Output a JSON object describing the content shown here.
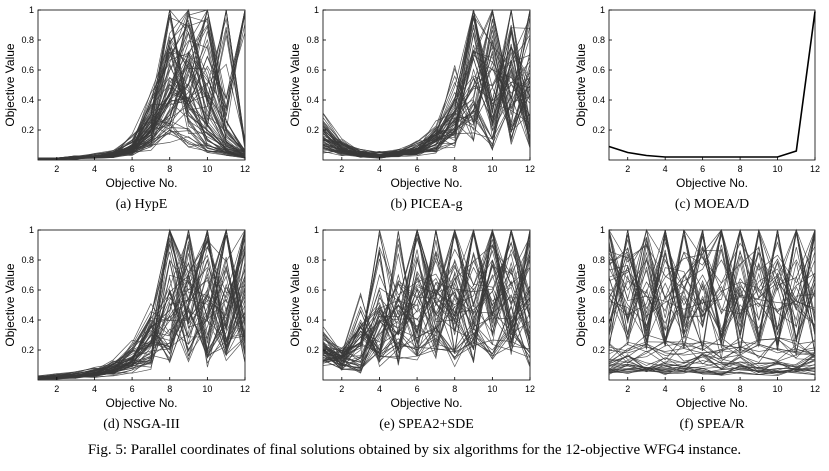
{
  "caption": "Fig. 5: Parallel coordinates of final solutions obtained by six algorithms for the 12-objective WFG4 instance.",
  "chart_data": [
    {
      "type": "line",
      "subtitle": "(a) HypE",
      "xlabel": "Objective No.",
      "ylabel": "Objective Value",
      "xlim": [
        1,
        12
      ],
      "ylim": [
        0,
        1
      ],
      "xticks": [
        "2",
        "4",
        "6",
        "8",
        "10",
        "12"
      ],
      "yticks": [
        "0.2",
        "0.4",
        "0.6",
        "0.8",
        "1"
      ],
      "color": "#3a3a3a",
      "series": [
        {
          "values": [
            0.01,
            0.01,
            0.02,
            0.02,
            0.03,
            0.06,
            0.15,
            0.55,
            0.4,
            0.1,
            0.05,
            0.02
          ]
        },
        {
          "values": [
            0.01,
            0.01,
            0.01,
            0.02,
            0.04,
            0.1,
            0.25,
            0.95,
            0.3,
            0.2,
            0.08,
            0.04
          ]
        },
        {
          "values": [
            0.01,
            0.01,
            0.02,
            0.03,
            0.05,
            0.12,
            0.35,
            0.6,
            0.85,
            0.3,
            0.1,
            0.02
          ]
        },
        {
          "values": [
            0.01,
            0.01,
            0.01,
            0.02,
            0.03,
            0.08,
            0.2,
            0.45,
            0.7,
            0.95,
            0.2,
            0.05
          ]
        },
        {
          "values": [
            0.01,
            0.01,
            0.02,
            0.02,
            0.04,
            0.09,
            0.18,
            0.3,
            0.6,
            0.4,
            0.99,
            0.1
          ]
        },
        {
          "values": [
            0.01,
            0.01,
            0.01,
            0.02,
            0.03,
            0.07,
            0.22,
            0.4,
            0.5,
            0.8,
            0.3,
            0.98
          ]
        },
        {
          "values": [
            0.01,
            0.01,
            0.01,
            0.02,
            0.03,
            0.05,
            0.1,
            0.2,
            0.15,
            0.08,
            0.05,
            0.02
          ]
        },
        {
          "values": [
            0.01,
            0.01,
            0.02,
            0.02,
            0.03,
            0.06,
            0.3,
            0.75,
            0.65,
            0.5,
            0.2,
            0.05
          ]
        }
      ]
    },
    {
      "type": "line",
      "subtitle": "(b) PICEA-g",
      "xlabel": "Objective No.",
      "ylabel": "Objective Value",
      "xlim": [
        1,
        12
      ],
      "ylim": [
        0,
        1
      ],
      "xticks": [
        "2",
        "4",
        "6",
        "8",
        "10",
        "12"
      ],
      "yticks": [
        "0.2",
        "0.4",
        "0.6",
        "0.8",
        "1"
      ],
      "color": "#3a3a3a",
      "series": [
        {
          "values": [
            0.22,
            0.1,
            0.05,
            0.04,
            0.05,
            0.08,
            0.15,
            0.35,
            0.95,
            0.4,
            0.9,
            0.2
          ]
        },
        {
          "values": [
            0.18,
            0.08,
            0.04,
            0.03,
            0.04,
            0.06,
            0.12,
            0.25,
            0.5,
            0.98,
            0.3,
            0.95
          ]
        },
        {
          "values": [
            0.12,
            0.06,
            0.03,
            0.03,
            0.04,
            0.07,
            0.1,
            0.3,
            0.7,
            0.6,
            0.55,
            0.4
          ]
        },
        {
          "values": [
            0.08,
            0.05,
            0.03,
            0.02,
            0.03,
            0.05,
            0.08,
            0.2,
            0.3,
            0.1,
            0.65,
            0.7
          ]
        },
        {
          "values": [
            0.2,
            0.09,
            0.05,
            0.04,
            0.05,
            0.09,
            0.18,
            0.45,
            0.2,
            0.8,
            0.15,
            0.5
          ]
        },
        {
          "values": [
            0.15,
            0.07,
            0.04,
            0.03,
            0.03,
            0.05,
            0.14,
            0.15,
            0.85,
            0.25,
            0.75,
            0.1
          ]
        }
      ]
    },
    {
      "type": "line",
      "subtitle": "(c) MOEA/D",
      "xlabel": "Objective No.",
      "ylabel": "Objective Value",
      "xlim": [
        1,
        12
      ],
      "ylim": [
        0,
        1
      ],
      "xticks": [
        "2",
        "4",
        "6",
        "8",
        "10",
        "12"
      ],
      "yticks": [
        "0.2",
        "0.4",
        "0.6",
        "0.8",
        "1"
      ],
      "color": "#000000",
      "series": [
        {
          "values": [
            0.09,
            0.05,
            0.03,
            0.02,
            0.02,
            0.02,
            0.02,
            0.02,
            0.02,
            0.02,
            0.06,
            0.99
          ]
        }
      ]
    },
    {
      "type": "line",
      "subtitle": "(d) NSGA-III",
      "xlabel": "Objective No.",
      "ylabel": "Objective Value",
      "xlim": [
        1,
        12
      ],
      "ylim": [
        0,
        1
      ],
      "xticks": [
        "2",
        "4",
        "6",
        "8",
        "10",
        "12"
      ],
      "yticks": [
        "0.2",
        "0.4",
        "0.6",
        "0.8",
        "1"
      ],
      "color": "#3a3a3a",
      "series": [
        {
          "values": [
            0.02,
            0.02,
            0.03,
            0.05,
            0.08,
            0.15,
            0.35,
            0.98,
            0.4,
            0.6,
            0.2,
            0.5
          ]
        },
        {
          "values": [
            0.01,
            0.02,
            0.03,
            0.04,
            0.07,
            0.12,
            0.25,
            0.45,
            0.97,
            0.3,
            0.8,
            0.2
          ]
        },
        {
          "values": [
            0.02,
            0.03,
            0.04,
            0.06,
            0.1,
            0.2,
            0.4,
            0.3,
            0.5,
            0.98,
            0.25,
            0.7
          ]
        },
        {
          "values": [
            0.01,
            0.02,
            0.02,
            0.04,
            0.06,
            0.1,
            0.18,
            0.6,
            0.2,
            0.45,
            0.99,
            0.3
          ]
        },
        {
          "values": [
            0.02,
            0.02,
            0.03,
            0.05,
            0.09,
            0.14,
            0.3,
            0.2,
            0.7,
            0.15,
            0.4,
            0.98
          ]
        },
        {
          "values": [
            0.01,
            0.01,
            0.02,
            0.03,
            0.05,
            0.08,
            0.12,
            0.8,
            0.6,
            0.75,
            0.55,
            0.85
          ]
        }
      ]
    },
    {
      "type": "line",
      "subtitle": "(e) SPEA2+SDE",
      "xlabel": "Objective No.",
      "ylabel": "Objective Value",
      "xlim": [
        1,
        12
      ],
      "ylim": [
        0,
        1
      ],
      "xticks": [
        "2",
        "4",
        "6",
        "8",
        "10",
        "12"
      ],
      "yticks": [
        "0.2",
        "0.4",
        "0.6",
        "0.8",
        "1"
      ],
      "color": "#3a3a3a",
      "series": [
        {
          "values": [
            0.18,
            0.15,
            0.12,
            0.45,
            0.3,
            0.6,
            0.25,
            0.98,
            0.4,
            0.7,
            0.3,
            0.95
          ]
        },
        {
          "values": [
            0.2,
            0.12,
            0.35,
            0.2,
            0.7,
            0.25,
            0.85,
            0.3,
            0.97,
            0.35,
            0.98,
            0.4
          ]
        },
        {
          "values": [
            0.25,
            0.18,
            0.25,
            0.6,
            0.15,
            0.8,
            0.4,
            0.6,
            0.2,
            0.99,
            0.25,
            0.6
          ]
        },
        {
          "values": [
            0.15,
            0.1,
            0.08,
            0.3,
            0.5,
            0.4,
            0.6,
            0.45,
            0.75,
            0.5,
            0.65,
            0.3
          ]
        },
        {
          "values": [
            0.22,
            0.14,
            0.4,
            0.15,
            0.25,
            0.2,
            0.3,
            0.15,
            0.3,
            0.2,
            0.35,
            0.15
          ]
        },
        {
          "values": [
            0.17,
            0.11,
            0.2,
            0.7,
            0.4,
            0.95,
            0.5,
            0.75,
            0.6,
            0.8,
            0.5,
            0.75
          ]
        }
      ]
    },
    {
      "type": "line",
      "subtitle": "(f) SPEA/R",
      "xlabel": "Objective No.",
      "ylabel": "Objective Value",
      "xlim": [
        1,
        12
      ],
      "ylim": [
        0,
        1
      ],
      "xticks": [
        "2",
        "4",
        "6",
        "8",
        "10",
        "12"
      ],
      "yticks": [
        "0.2",
        "0.4",
        "0.6",
        "0.8",
        "1"
      ],
      "color": "#3a3a3a",
      "series": [
        {
          "values": [
            0.98,
            0.3,
            0.95,
            0.25,
            0.97,
            0.35,
            0.98,
            0.3,
            0.97,
            0.25,
            0.98,
            0.3
          ]
        },
        {
          "values": [
            0.3,
            0.97,
            0.25,
            0.98,
            0.3,
            0.96,
            0.25,
            0.98,
            0.3,
            0.97,
            0.25,
            0.98
          ]
        },
        {
          "values": [
            0.85,
            0.6,
            0.8,
            0.55,
            0.85,
            0.6,
            0.8,
            0.55,
            0.85,
            0.6,
            0.8,
            0.55
          ]
        },
        {
          "values": [
            0.1,
            0.12,
            0.08,
            0.11,
            0.09,
            0.13,
            0.1,
            0.12,
            0.08,
            0.11,
            0.09,
            0.13
          ]
        },
        {
          "values": [
            0.2,
            0.18,
            0.22,
            0.19,
            0.21,
            0.18,
            0.2,
            0.22,
            0.19,
            0.21,
            0.18,
            0.2
          ]
        },
        {
          "values": [
            0.55,
            0.75,
            0.4,
            0.8,
            0.5,
            0.7,
            0.45,
            0.85,
            0.55,
            0.65,
            0.5,
            0.8
          ]
        },
        {
          "values": [
            0.05,
            0.07,
            0.06,
            0.05,
            0.07,
            0.06,
            0.05,
            0.07,
            0.06,
            0.05,
            0.07,
            0.06
          ]
        }
      ]
    }
  ]
}
